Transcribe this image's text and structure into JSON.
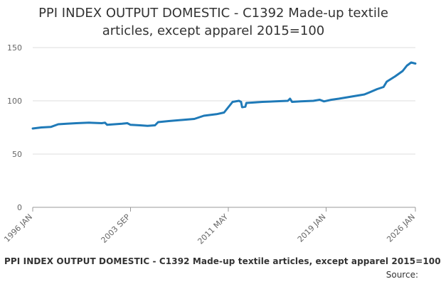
{
  "header": {
    "title_line1": "PPI INDEX OUTPUT DOMESTIC - C1392 Made-up textile",
    "title_line2": "articles, except apparel 2015=100"
  },
  "footer": {
    "title": "PPI INDEX OUTPUT DOMESTIC - C1392 Made-up textile articles, except apparel 2015=100",
    "source_label": "Source:"
  },
  "chart_data": {
    "type": "line",
    "title": "PPI INDEX OUTPUT DOMESTIC - C1392 Made-up textile articles, except apparel 2015=100",
    "xlabel": "",
    "ylabel": "",
    "x_range": [
      "1996-01",
      "2026-01"
    ],
    "ylim": [
      0,
      150
    ],
    "y_ticks": [
      0,
      50,
      100,
      150
    ],
    "x_tick_labels": [
      "1996 JAN",
      "2003 SEP",
      "2011 MAY",
      "2019 JAN",
      "2026 JAN"
    ],
    "x_tick_dates": [
      "1996-01",
      "2003-09",
      "2011-05",
      "2019-01",
      "2026-01"
    ],
    "grid": "horizontal",
    "legend": "none",
    "line_color": "#1f7ab8",
    "series": [
      {
        "points": [
          [
            "1996-01",
            74
          ],
          [
            "1996-09",
            75
          ],
          [
            "1997-06",
            75.5
          ],
          [
            "1998-01",
            78
          ],
          [
            "1998-09",
            78.5
          ],
          [
            "1999-06",
            79
          ],
          [
            "2000-06",
            79.5
          ],
          [
            "2001-06",
            79
          ],
          [
            "2001-09",
            79.5
          ],
          [
            "2001-11",
            77.5
          ],
          [
            "2002-06",
            78
          ],
          [
            "2003-01",
            78.5
          ],
          [
            "2003-06",
            79
          ],
          [
            "2003-09",
            77.5
          ],
          [
            "2004-06",
            77
          ],
          [
            "2005-01",
            76.5
          ],
          [
            "2005-08",
            77
          ],
          [
            "2005-11",
            80
          ],
          [
            "2006-09",
            81
          ],
          [
            "2007-09",
            82
          ],
          [
            "2008-09",
            83
          ],
          [
            "2009-06",
            86
          ],
          [
            "2010-06",
            87.5
          ],
          [
            "2011-01",
            89
          ],
          [
            "2011-05",
            94
          ],
          [
            "2011-09",
            99
          ],
          [
            "2012-03",
            100
          ],
          [
            "2012-05",
            99
          ],
          [
            "2012-06",
            94
          ],
          [
            "2012-09",
            94.5
          ],
          [
            "2012-10",
            98
          ],
          [
            "2013-06",
            98.5
          ],
          [
            "2014-01",
            99
          ],
          [
            "2015-01",
            99.5
          ],
          [
            "2016-01",
            100
          ],
          [
            "2016-03",
            102
          ],
          [
            "2016-05",
            99
          ],
          [
            "2017-01",
            99.5
          ],
          [
            "2018-01",
            100
          ],
          [
            "2018-07",
            101
          ],
          [
            "2018-11",
            99.5
          ],
          [
            "2019-06",
            101
          ],
          [
            "2020-01",
            102
          ],
          [
            "2021-01",
            104
          ],
          [
            "2022-01",
            106
          ],
          [
            "2022-06",
            108
          ],
          [
            "2023-01",
            111
          ],
          [
            "2023-07",
            113
          ],
          [
            "2023-10",
            118
          ],
          [
            "2024-06",
            123
          ],
          [
            "2025-01",
            128
          ],
          [
            "2025-05",
            133
          ],
          [
            "2025-09",
            136
          ],
          [
            "2026-01",
            135
          ]
        ]
      }
    ]
  }
}
